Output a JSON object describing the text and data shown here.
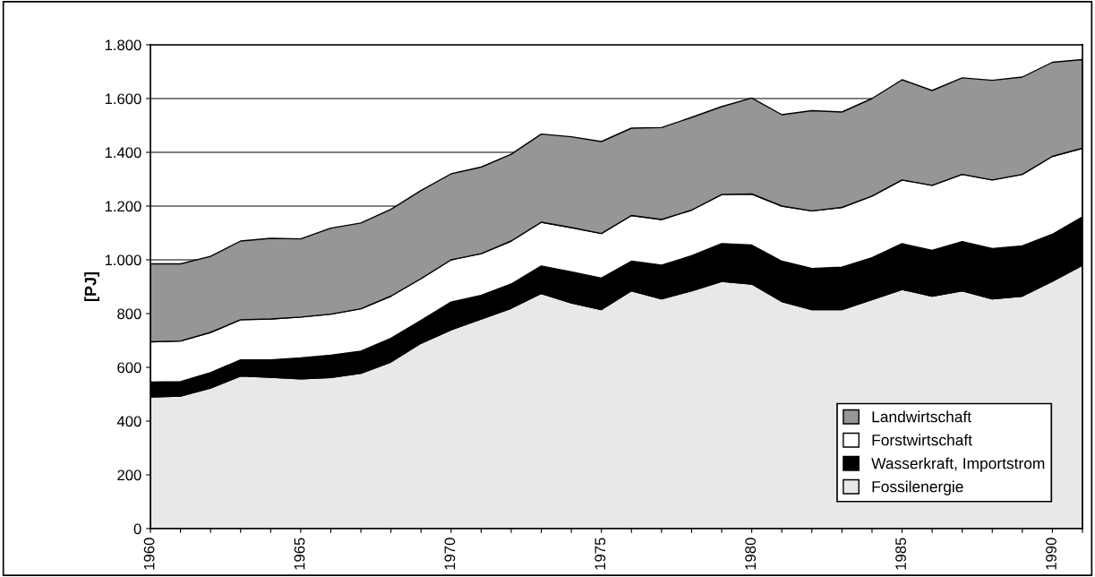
{
  "chart_data": {
    "type": "area",
    "stacked": true,
    "ylabel": "[PJ]",
    "x": [
      1960,
      1961,
      1962,
      1963,
      1964,
      1965,
      1966,
      1967,
      1968,
      1969,
      1970,
      1971,
      1972,
      1973,
      1974,
      1975,
      1976,
      1977,
      1978,
      1979,
      1980,
      1981,
      1982,
      1983,
      1984,
      1985,
      1986,
      1987,
      1988,
      1989,
      1990,
      1991
    ],
    "series": [
      {
        "name": "Fossilenergie",
        "color": "#e8e8e8",
        "values": [
          490,
          493,
          523,
          568,
          563,
          557,
          562,
          578,
          620,
          690,
          740,
          780,
          820,
          875,
          840,
          815,
          885,
          855,
          885,
          920,
          910,
          845,
          815,
          815,
          852,
          890,
          865,
          885,
          855,
          865,
          920,
          980
        ]
      },
      {
        "name": "Wasserkraft, Importstrom",
        "color": "#000000",
        "values": [
          55,
          54,
          57,
          60,
          65,
          78,
          83,
          82,
          88,
          85,
          103,
          88,
          90,
          102,
          115,
          117,
          110,
          125,
          130,
          140,
          145,
          150,
          153,
          158,
          156,
          170,
          170,
          183,
          187,
          187,
          175,
          180
        ]
      },
      {
        "name": "Forstwirtschaft",
        "color": "#ffffff",
        "values": [
          150,
          151,
          150,
          149,
          152,
          152,
          153,
          158,
          157,
          155,
          157,
          155,
          160,
          163,
          165,
          166,
          170,
          170,
          170,
          183,
          190,
          205,
          214,
          222,
          229,
          237,
          242,
          250,
          255,
          266,
          290,
          255
        ]
      },
      {
        "name": "Landwirtschaft",
        "color": "#969696",
        "values": [
          290,
          287,
          283,
          293,
          300,
          291,
          320,
          319,
          323,
          328,
          320,
          322,
          323,
          328,
          338,
          342,
          325,
          342,
          345,
          327,
          357,
          340,
          373,
          355,
          363,
          373,
          353,
          359,
          371,
          362,
          350,
          330
        ]
      }
    ],
    "xlim": [
      1960,
      1991
    ],
    "xticks": [
      1960,
      {
        "value": 1961,
        "label": null
      },
      {
        "value": 1962,
        "label": null
      },
      {
        "value": 1963,
        "label": null
      },
      {
        "value": 1964,
        "label": null
      },
      1965,
      {
        "value": 1966,
        "label": null
      },
      {
        "value": 1967,
        "label": null
      },
      {
        "value": 1968,
        "label": null
      },
      {
        "value": 1969,
        "label": null
      },
      1970,
      {
        "value": 1971,
        "label": null
      },
      {
        "value": 1972,
        "label": null
      },
      {
        "value": 1973,
        "label": null
      },
      {
        "value": 1974,
        "label": null
      },
      1975,
      {
        "value": 1976,
        "label": null
      },
      {
        "value": 1977,
        "label": null
      },
      {
        "value": 1978,
        "label": null
      },
      {
        "value": 1979,
        "label": null
      },
      1980,
      {
        "value": 1981,
        "label": null
      },
      {
        "value": 1982,
        "label": null
      },
      {
        "value": 1983,
        "label": null
      },
      {
        "value": 1984,
        "label": null
      },
      1985,
      {
        "value": 1986,
        "label": null
      },
      {
        "value": 1987,
        "label": null
      },
      {
        "value": 1988,
        "label": null
      },
      {
        "value": 1989,
        "label": null
      },
      1990,
      {
        "value": 1991,
        "label": null
      }
    ],
    "ylim": [
      0,
      1800
    ],
    "yticks": [
      0,
      200,
      400,
      600,
      800,
      {
        "value": 1000,
        "label": "1.000"
      },
      {
        "value": 1200,
        "label": "1.200"
      },
      {
        "value": 1400,
        "label": "1.400"
      },
      {
        "value": 1600,
        "label": "1.600"
      },
      {
        "value": 1800,
        "label": "1.800"
      }
    ],
    "grid": "y",
    "legend": "lower right"
  }
}
